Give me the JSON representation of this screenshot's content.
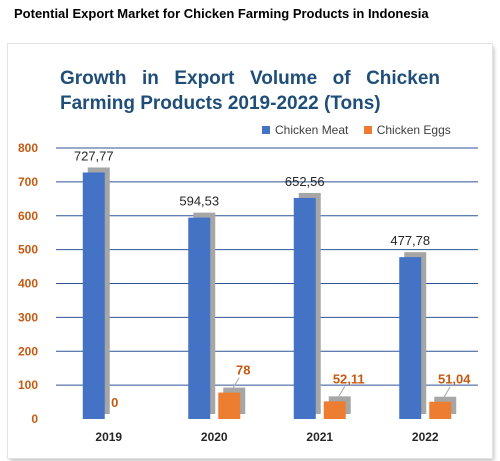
{
  "page": {
    "title": "Potential Export Market for Chicken Farming Products in Indonesia"
  },
  "chart_data": {
    "type": "bar",
    "title": "Growth in Export Volume of Chicken Farming Products 2019-2022 (Tons)",
    "categories": [
      "2019",
      "2020",
      "2021",
      "2022"
    ],
    "series": [
      {
        "name": "Chicken Meat",
        "values": [
          727.77,
          594.53,
          652.56,
          477.78
        ],
        "labels": [
          "727,77",
          "594,53",
          "652,56",
          "477,78"
        ],
        "color": "#4472C4"
      },
      {
        "name": "Chicken Eggs",
        "values": [
          0,
          78,
          52.11,
          51.04
        ],
        "labels": [
          "0",
          "78",
          "52,11",
          "51,04"
        ],
        "color": "#ED7D31"
      }
    ],
    "ylim": [
      0,
      800
    ],
    "yticks": [
      0,
      100,
      200,
      300,
      400,
      500,
      600,
      700,
      800
    ],
    "grid": true,
    "legend": "top-right",
    "colors": {
      "axis_text": "#C55A11",
      "title": "#1F4E79",
      "gridline": "#2F5597",
      "shadow": "#A6A6A6"
    }
  }
}
